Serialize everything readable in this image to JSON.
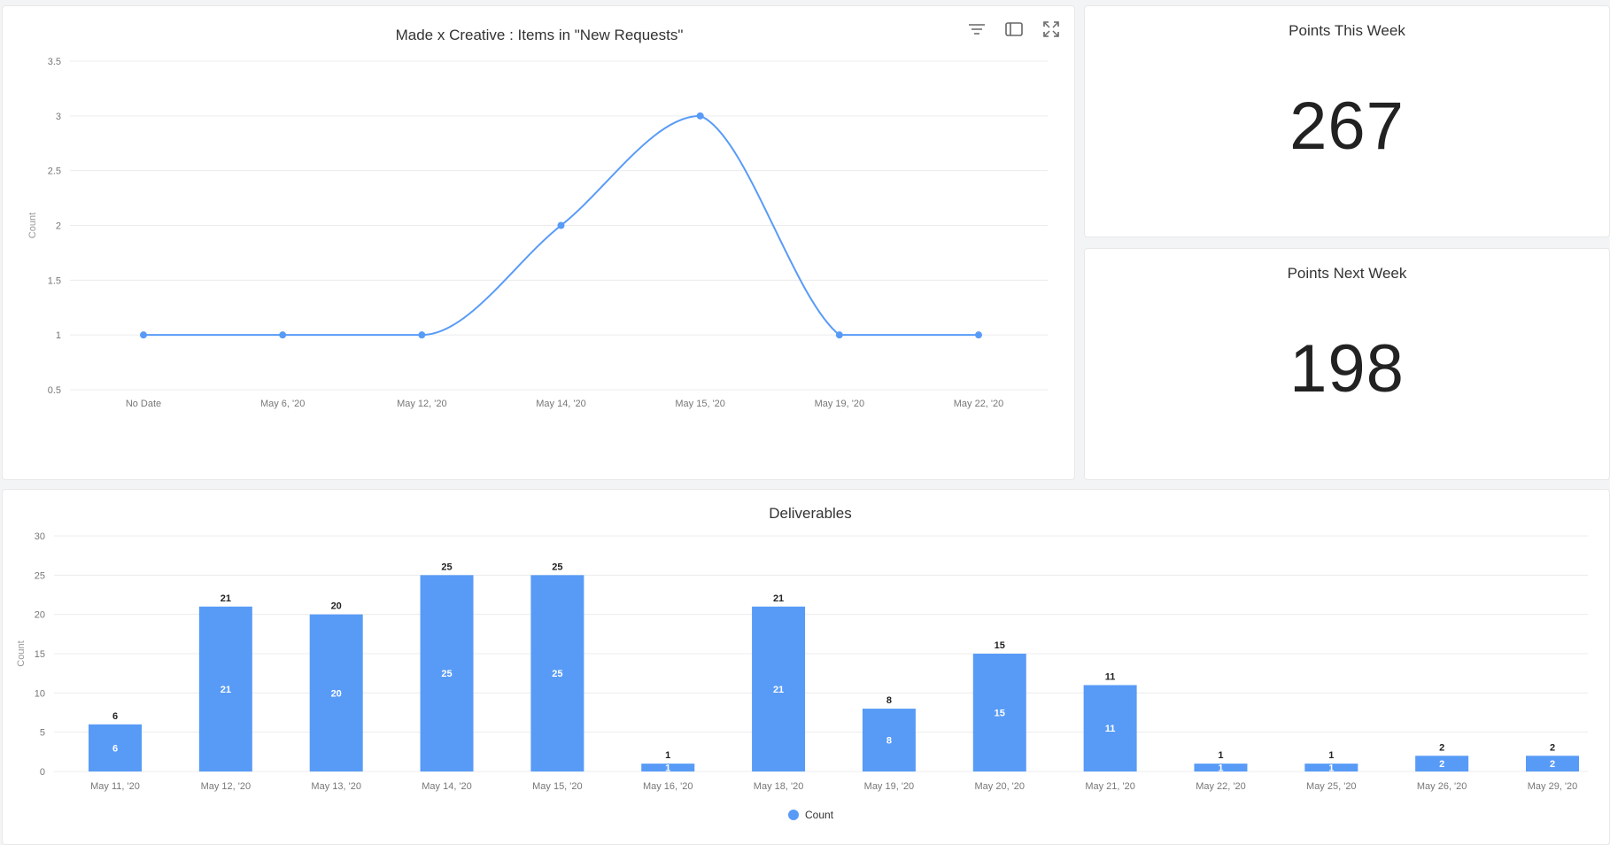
{
  "line_card": {
    "toolbar": {
      "filter_icon": "filter-icon",
      "panel_icon": "panel-toggle-icon",
      "expand_icon": "fullscreen-icon"
    }
  },
  "kpi_this_week": {
    "title": "Points This Week",
    "value": "267"
  },
  "kpi_next_week": {
    "title": "Points Next Week",
    "value": "198"
  },
  "colors": {
    "series": "#589bf7",
    "grid": "#ececec",
    "axis_text": "#777777"
  },
  "chart_data": [
    {
      "type": "line",
      "title": "Made x Creative : Items in \"New Requests\"",
      "ylabel": "Count",
      "categories": [
        "No Date",
        "May 6, '20",
        "May 12, '20",
        "May 14, '20",
        "May 15, '20",
        "May 19, '20",
        "May 22, '20"
      ],
      "values": [
        1,
        1,
        1,
        2,
        3,
        1,
        1
      ],
      "ylim": [
        0.5,
        3.5
      ],
      "yticks": [
        0.5,
        1,
        1.5,
        2,
        2.5,
        3,
        3.5
      ],
      "ytick_labels": [
        "0.5",
        "1",
        "1.5",
        "2",
        "2.5",
        "3",
        "3.5"
      ],
      "smooth": true,
      "grid": true
    },
    {
      "type": "bar",
      "title": "Deliverables",
      "ylabel": "Count",
      "categories": [
        "May 11, '20",
        "May 12, '20",
        "May 13, '20",
        "May 14, '20",
        "May 15, '20",
        "May 16, '20",
        "May 18, '20",
        "May 19, '20",
        "May 20, '20",
        "May 21, '20",
        "May 22, '20",
        "May 25, '20",
        "May 26, '20",
        "May 29, '20"
      ],
      "series": [
        {
          "name": "Count",
          "values": [
            6,
            21,
            20,
            25,
            25,
            1,
            21,
            8,
            15,
            11,
            1,
            1,
            2,
            2
          ]
        }
      ],
      "ylim": [
        0,
        30
      ],
      "yticks": [
        0,
        5,
        10,
        15,
        20,
        25,
        30
      ],
      "ytick_labels": [
        "0",
        "5",
        "10",
        "15",
        "20",
        "25",
        "30"
      ],
      "data_labels": true,
      "grid": true,
      "legend": "bottom-center"
    }
  ]
}
